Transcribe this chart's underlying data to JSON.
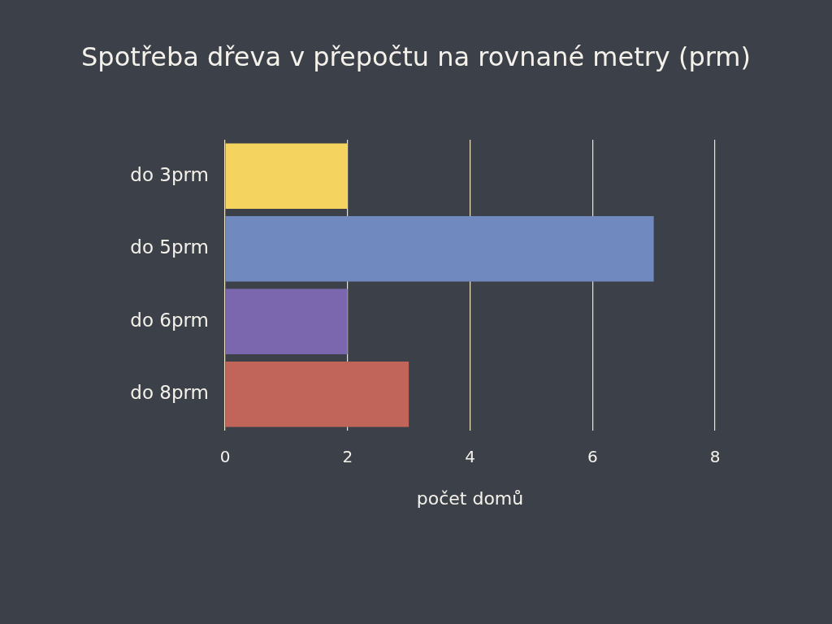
{
  "chart_data": {
    "type": "bar",
    "orientation": "horizontal",
    "title": "Spotřeba dřeva v přepočtu na rovnané metry (prm)",
    "xlabel": "počet domů",
    "categories": [
      "do 3prm",
      "do 5prm",
      "do 6prm",
      "do 8prm"
    ],
    "values": [
      2,
      7,
      2,
      3
    ],
    "colors": [
      "#f4d35e",
      "#7089be",
      "#7b67ad",
      "#c1655a"
    ],
    "xlim": [
      0,
      8
    ],
    "xticks": [
      0,
      2,
      4,
      6,
      8
    ],
    "grid": "x"
  }
}
